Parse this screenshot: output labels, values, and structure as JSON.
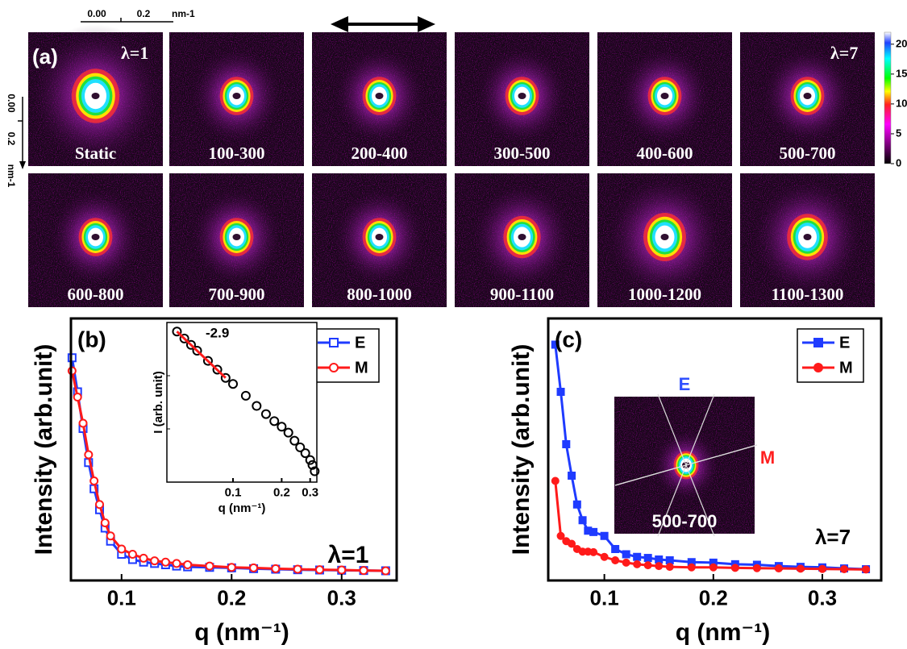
{
  "panel_a": {
    "label": "(a)",
    "lambda_left": "λ=1",
    "lambda_right": "λ=7",
    "scale_x": {
      "ticks": [
        "0.00",
        "0.2"
      ],
      "unit": "nm-1"
    },
    "scale_y": {
      "ticks": [
        "0.00",
        "0.2"
      ],
      "unit": "nm-1"
    },
    "tiles": [
      "Static",
      "100-300",
      "200-400",
      "300-500",
      "400-600",
      "500-700",
      "600-800",
      "700-900",
      "800-1000",
      "900-1100",
      "1000-1200",
      "1100-1300"
    ],
    "colorbar": {
      "lim": [
        0,
        22
      ],
      "ticks": [
        0,
        5,
        10,
        15,
        20
      ]
    }
  },
  "chart_data": [
    {
      "type": "line",
      "panel_label": "(b)",
      "xlabel": "q (nm⁻¹)",
      "ylabel": "Intensity (arb.unit)",
      "annotation": "λ=1",
      "x": [
        0.055,
        0.06,
        0.065,
        0.07,
        0.075,
        0.08,
        0.085,
        0.09,
        0.1,
        0.11,
        0.12,
        0.13,
        0.14,
        0.15,
        0.16,
        0.18,
        0.2,
        0.22,
        0.24,
        0.26,
        0.28,
        0.3,
        0.32,
        0.34
      ],
      "xlim": [
        0.054,
        0.35
      ],
      "xticks": [
        0.1,
        0.2,
        0.3
      ],
      "ylim": [
        0,
        100
      ],
      "legend": "upper right",
      "series": [
        {
          "name": "E",
          "color": "#1f3bff",
          "marker": "open-square",
          "values": [
            85,
            72,
            58,
            45,
            35,
            27,
            20,
            15,
            10,
            8,
            7,
            6.5,
            6,
            5.5,
            5.2,
            5,
            4.8,
            4.5,
            4.3,
            4.1,
            4,
            3.9,
            3.8,
            3.7
          ]
        },
        {
          "name": "M",
          "color": "#ff1a1a",
          "marker": "open-circle",
          "values": [
            80,
            70,
            60,
            48,
            38,
            29,
            22,
            17,
            12,
            10,
            8.5,
            7.5,
            7,
            6.5,
            6,
            5.5,
            5,
            4.8,
            4.5,
            4.3,
            4.1,
            4,
            3.8,
            3.7
          ]
        }
      ]
    },
    {
      "type": "scatter",
      "xlabel": "q (nm⁻¹)",
      "ylabel": "I (arb. unit)",
      "xscale": "log",
      "yscale": "log",
      "x": [
        0.045,
        0.05,
        0.055,
        0.06,
        0.07,
        0.08,
        0.09,
        0.1,
        0.12,
        0.14,
        0.16,
        0.18,
        0.2,
        0.22,
        0.24,
        0.26,
        0.28,
        0.3,
        0.31,
        0.32
      ],
      "values": [
        676,
        500,
        380,
        295,
        190,
        130,
        91,
        70,
        42,
        27,
        19,
        14,
        11,
        8.5,
        6,
        4.5,
        3.5,
        2.6,
        2.1,
        1.6
      ],
      "color": "#000000",
      "xlim": [
        0.039,
        0.33
      ],
      "xticks": [
        0.1,
        0.2,
        0.3
      ],
      "ylim": [
        1,
        1000
      ],
      "fit": {
        "x": [
          0.045,
          0.09
        ],
        "values": [
          676,
          91
        ],
        "color": "#ff1a1a",
        "label": "-2.9"
      }
    },
    {
      "type": "line",
      "panel_label": "(c)",
      "xlabel": "q (nm⁻¹)",
      "ylabel": "Intensity (arb.unit)",
      "annotation": "λ=7",
      "x": [
        0.055,
        0.06,
        0.065,
        0.07,
        0.075,
        0.08,
        0.085,
        0.09,
        0.1,
        0.11,
        0.12,
        0.13,
        0.14,
        0.15,
        0.16,
        0.18,
        0.2,
        0.22,
        0.24,
        0.26,
        0.28,
        0.3,
        0.32,
        0.34
      ],
      "xlim": [
        0.0485,
        0.354
      ],
      "xticks": [
        0.1,
        0.2,
        0.3
      ],
      "ylim": [
        0,
        100
      ],
      "legend": "upper right",
      "inset_labels": {
        "E": "E",
        "M": "M",
        "frame": "500-700"
      },
      "series": [
        {
          "name": "E",
          "color": "#1f3bff",
          "marker": "square",
          "values": [
            90,
            72,
            52,
            40,
            29,
            23,
            19,
            18.5,
            17,
            12,
            10,
            9,
            8.6,
            8,
            7.7,
            7,
            6.8,
            6.2,
            6,
            5.5,
            5.2,
            5,
            4.6,
            4.3
          ]
        },
        {
          "name": "M",
          "color": "#ff1a1a",
          "marker": "circle",
          "values": [
            38,
            17,
            15,
            14,
            12,
            11,
            11,
            10.8,
            9,
            7.7,
            6.8,
            6.2,
            5.8,
            5.5,
            5.2,
            5,
            5,
            4.8,
            4.7,
            4.6,
            4.5,
            4.4,
            4.3,
            4.2
          ]
        }
      ]
    }
  ]
}
